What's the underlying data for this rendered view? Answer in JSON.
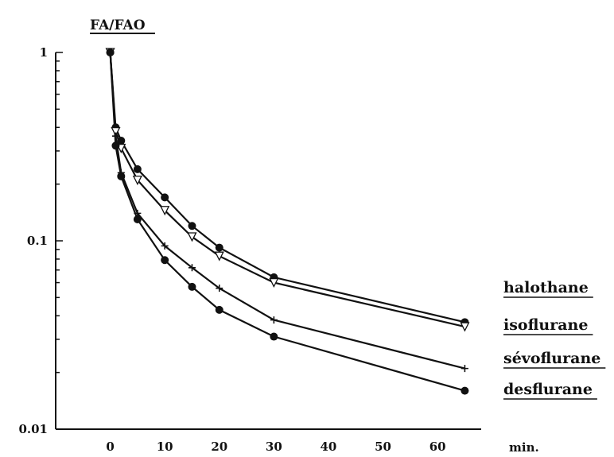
{
  "chart_data": {
    "type": "line",
    "title": "FA/FAO",
    "xlabel": "min.",
    "ylabel": "",
    "y_scale": "log",
    "xlim": [
      -10,
      68
    ],
    "ylim": [
      0.01,
      1
    ],
    "x_ticks": [
      0,
      10,
      20,
      30,
      40,
      50,
      60
    ],
    "y_ticks": [
      {
        "value": 1,
        "label": "1"
      },
      {
        "value": 0.1,
        "label": "0.1"
      },
      {
        "value": 0.01,
        "label": "0.01"
      }
    ],
    "legend_position": "right",
    "series": [
      {
        "name": "halothane",
        "marker": "filled-circle",
        "x": [
          0,
          1,
          2,
          5,
          10,
          15,
          20,
          30,
          65
        ],
        "y": [
          1,
          0.4,
          0.34,
          0.24,
          0.17,
          0.12,
          0.092,
          0.064,
          0.037
        ]
      },
      {
        "name": "isoflurane",
        "marker": "open-triangle",
        "x": [
          0,
          1,
          2,
          5,
          10,
          15,
          20,
          30,
          65
        ],
        "y": [
          1,
          0.38,
          0.31,
          0.21,
          0.145,
          0.105,
          0.083,
          0.06,
          0.035
        ]
      },
      {
        "name": "sévoflurane",
        "marker": "cross",
        "x": [
          0,
          1,
          2,
          5,
          10,
          15,
          20,
          30,
          65
        ],
        "y": [
          1,
          0.36,
          0.23,
          0.14,
          0.094,
          0.072,
          0.056,
          0.038,
          0.021
        ]
      },
      {
        "name": "desflurane",
        "marker": "filled-circle",
        "x": [
          0,
          1,
          2,
          5,
          10,
          15,
          20,
          30,
          65
        ],
        "y": [
          1,
          0.32,
          0.22,
          0.13,
          0.079,
          0.057,
          0.043,
          0.031,
          0.016
        ]
      }
    ]
  }
}
